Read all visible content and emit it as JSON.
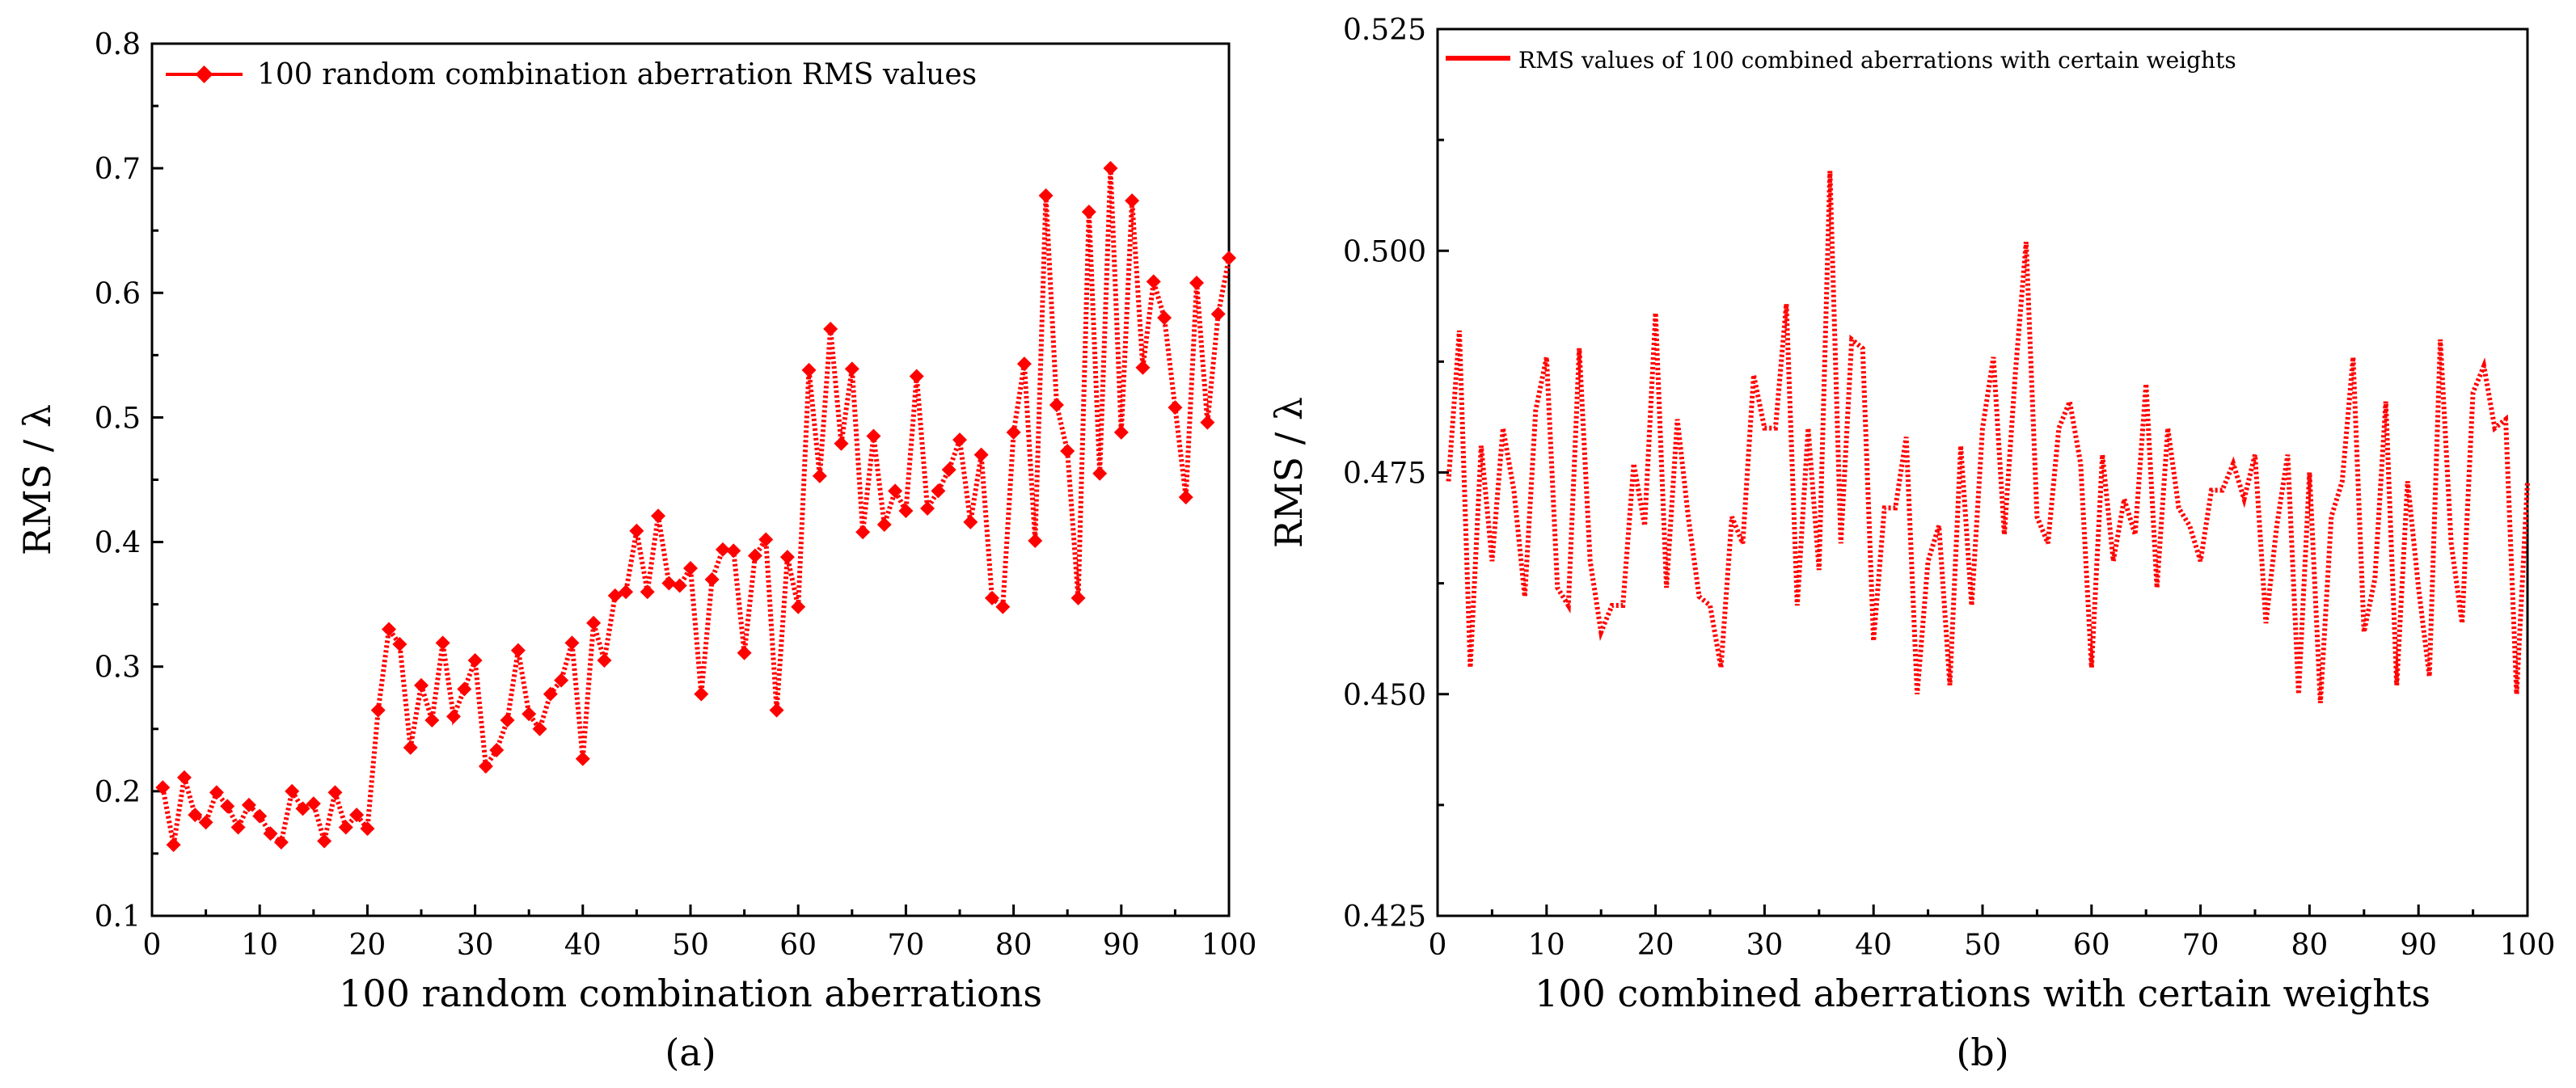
{
  "colors": {
    "series": "#ff0000",
    "axis": "#000000",
    "background": "#ffffff"
  },
  "chart_data": [
    {
      "type": "line",
      "title": "",
      "sub_label": "(a)",
      "xlabel": "100 random combination aberrations",
      "ylabel": "RMS / λ",
      "xlim": [
        0,
        100
      ],
      "ylim": [
        0.1,
        0.8
      ],
      "xticks": [
        "0",
        "10",
        "20",
        "30",
        "40",
        "50",
        "60",
        "70",
        "80",
        "90",
        "100"
      ],
      "yticks": [
        "0.1",
        "0.2",
        "0.3",
        "0.4",
        "0.5",
        "0.6",
        "0.7",
        "0.8"
      ],
      "grid": false,
      "legend_position": "top-left",
      "series": [
        {
          "name": "100 random combination aberration RMS values",
          "marker": "diamond",
          "x": [
            1,
            2,
            3,
            4,
            5,
            6,
            7,
            8,
            9,
            10,
            11,
            12,
            13,
            14,
            15,
            16,
            17,
            18,
            19,
            20,
            21,
            22,
            23,
            24,
            25,
            26,
            27,
            28,
            29,
            30,
            31,
            32,
            33,
            34,
            35,
            36,
            37,
            38,
            39,
            40,
            41,
            42,
            43,
            44,
            45,
            46,
            47,
            48,
            49,
            50,
            51,
            52,
            53,
            54,
            55,
            56,
            57,
            58,
            59,
            60,
            61,
            62,
            63,
            64,
            65,
            66,
            67,
            68,
            69,
            70,
            71,
            72,
            73,
            74,
            75,
            76,
            77,
            78,
            79,
            80,
            81,
            82,
            83,
            84,
            85,
            86,
            87,
            88,
            89,
            90,
            91,
            92,
            93,
            94,
            95,
            96,
            97,
            98,
            99,
            100
          ],
          "values": [
            0.203,
            0.157,
            0.211,
            0.181,
            0.175,
            0.199,
            0.188,
            0.171,
            0.189,
            0.18,
            0.166,
            0.159,
            0.2,
            0.186,
            0.19,
            0.16,
            0.199,
            0.171,
            0.181,
            0.17,
            0.265,
            0.33,
            0.318,
            0.235,
            0.285,
            0.257,
            0.319,
            0.26,
            0.282,
            0.305,
            0.22,
            0.233,
            0.257,
            0.313,
            0.262,
            0.25,
            0.278,
            0.289,
            0.319,
            0.226,
            0.335,
            0.305,
            0.357,
            0.36,
            0.409,
            0.36,
            0.421,
            0.367,
            0.365,
            0.379,
            0.278,
            0.37,
            0.394,
            0.393,
            0.311,
            0.389,
            0.402,
            0.265,
            0.388,
            0.348,
            0.538,
            0.453,
            0.571,
            0.479,
            0.539,
            0.408,
            0.485,
            0.414,
            0.441,
            0.425,
            0.533,
            0.427,
            0.441,
            0.458,
            0.482,
            0.416,
            0.47,
            0.355,
            0.348,
            0.488,
            0.543,
            0.401,
            0.678,
            0.51,
            0.473,
            0.355,
            0.665,
            0.455,
            0.7,
            0.488,
            0.674,
            0.54,
            0.609,
            0.58,
            0.508,
            0.436,
            0.608,
            0.496,
            0.583,
            0.628
          ]
        }
      ]
    },
    {
      "type": "line",
      "title": "",
      "sub_label": "(b)",
      "xlabel": "100 combined aberrations with certain weights",
      "ylabel": "RMS / λ",
      "xlim": [
        0,
        100
      ],
      "ylim": [
        0.425,
        0.525
      ],
      "xticks": [
        "0",
        "10",
        "20",
        "30",
        "40",
        "50",
        "60",
        "70",
        "80",
        "90",
        "100"
      ],
      "yticks": [
        "0.425",
        "0.450",
        "0.475",
        "0.500",
        "0.525"
      ],
      "grid": false,
      "legend_position": "top-left",
      "series": [
        {
          "name": "RMS values of 100 combined aberrations with certain weights",
          "marker": "none",
          "x": [
            1,
            2,
            3,
            4,
            5,
            6,
            7,
            8,
            9,
            10,
            11,
            12,
            13,
            14,
            15,
            16,
            17,
            18,
            19,
            20,
            21,
            22,
            23,
            24,
            25,
            26,
            27,
            28,
            29,
            30,
            31,
            32,
            33,
            34,
            35,
            36,
            37,
            38,
            39,
            40,
            41,
            42,
            43,
            44,
            45,
            46,
            47,
            48,
            49,
            50,
            51,
            52,
            53,
            54,
            55,
            56,
            57,
            58,
            59,
            60,
            61,
            62,
            63,
            64,
            65,
            66,
            67,
            68,
            69,
            70,
            71,
            72,
            73,
            74,
            75,
            76,
            77,
            78,
            79,
            80,
            81,
            82,
            83,
            84,
            85,
            86,
            87,
            88,
            89,
            90,
            91,
            92,
            93,
            94,
            95,
            96,
            97,
            98,
            99,
            100
          ],
          "values": [
            0.474,
            0.491,
            0.453,
            0.478,
            0.465,
            0.48,
            0.473,
            0.461,
            0.482,
            0.488,
            0.462,
            0.46,
            0.489,
            0.465,
            0.457,
            0.46,
            0.46,
            0.476,
            0.469,
            0.493,
            0.462,
            0.481,
            0.47,
            0.461,
            0.46,
            0.453,
            0.47,
            0.467,
            0.486,
            0.48,
            0.48,
            0.494,
            0.46,
            0.48,
            0.464,
            0.509,
            0.467,
            0.49,
            0.489,
            0.456,
            0.471,
            0.471,
            0.479,
            0.45,
            0.465,
            0.469,
            0.451,
            0.478,
            0.46,
            0.48,
            0.488,
            0.468,
            0.486,
            0.501,
            0.47,
            0.467,
            0.48,
            0.483,
            0.476,
            0.453,
            0.477,
            0.465,
            0.472,
            0.468,
            0.485,
            0.462,
            0.48,
            0.471,
            0.469,
            0.465,
            0.473,
            0.473,
            0.476,
            0.472,
            0.477,
            0.458,
            0.469,
            0.477,
            0.45,
            0.475,
            0.449,
            0.47,
            0.474,
            0.488,
            0.457,
            0.463,
            0.483,
            0.451,
            0.474,
            0.462,
            0.452,
            0.49,
            0.467,
            0.458,
            0.484,
            0.487,
            0.48,
            0.481,
            0.45,
            0.474
          ]
        }
      ]
    }
  ]
}
